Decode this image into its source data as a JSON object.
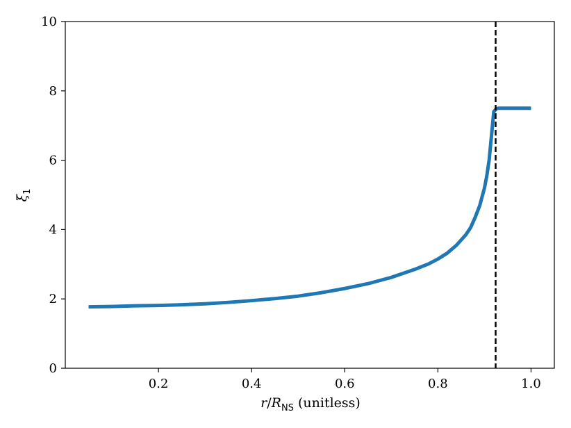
{
  "chart_data": {
    "type": "line",
    "xlim": [
      0.0,
      1.05
    ],
    "ylim": [
      0,
      10
    ],
    "xticks": [
      0.2,
      0.4,
      0.6,
      0.8,
      1.0
    ],
    "xtick_labels": [
      "0.2",
      "0.4",
      "0.6",
      "0.8",
      "1.0"
    ],
    "yticks": [
      0,
      2,
      4,
      6,
      8,
      10
    ],
    "ytick_labels": [
      "0",
      "2",
      "4",
      "6",
      "8",
      "10"
    ],
    "xlabel": {
      "var": "r",
      "slash": "/",
      "R": "R",
      "sub": "NS",
      "rest": " (unitless)"
    },
    "ylabel": {
      "var": "ξ",
      "sub": "1"
    },
    "grid": false,
    "legend": "none",
    "series": [
      {
        "color": "#1f77b4",
        "x": [
          0.05,
          0.1,
          0.15,
          0.2,
          0.25,
          0.3,
          0.35,
          0.4,
          0.45,
          0.5,
          0.55,
          0.6,
          0.65,
          0.7,
          0.75,
          0.78,
          0.8,
          0.82,
          0.84,
          0.86,
          0.87,
          0.88,
          0.89,
          0.9,
          0.905,
          0.91,
          0.915,
          0.92,
          0.925,
          0.93,
          0.95,
          0.97,
          1.0
        ],
        "y": [
          1.77,
          1.78,
          1.8,
          1.81,
          1.83,
          1.86,
          1.9,
          1.95,
          2.01,
          2.08,
          2.18,
          2.3,
          2.44,
          2.62,
          2.85,
          3.01,
          3.15,
          3.32,
          3.55,
          3.85,
          4.05,
          4.35,
          4.7,
          5.2,
          5.55,
          6.0,
          6.7,
          7.4,
          7.48,
          7.5,
          7.5,
          7.5,
          7.5
        ]
      }
    ],
    "vline": {
      "x": 0.924,
      "color": "#000000",
      "style": "dashed"
    }
  }
}
